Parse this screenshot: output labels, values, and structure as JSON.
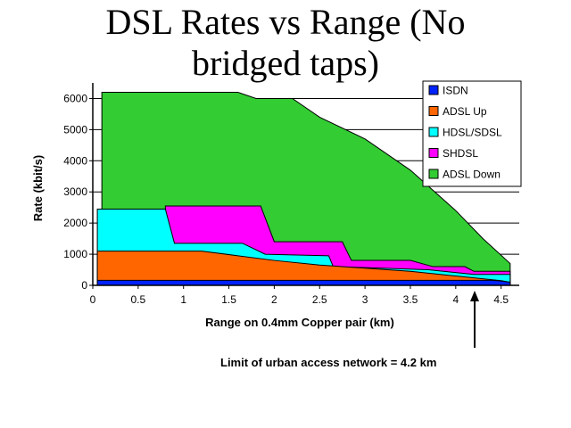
{
  "title_line1": "DSL Rates vs Range (No",
  "title_line2": "bridged taps)",
  "annotation": "Limit of urban access network = 4.2 km",
  "chart_data": {
    "type": "area",
    "xlabel": "Range on 0.4mm Copper pair (km)",
    "ylabel": "Rate (kbit/s)",
    "xlim": [
      0,
      4.7
    ],
    "ylim": [
      0,
      6500
    ],
    "x_ticks": [
      "0",
      "0.5",
      "1",
      "1.5",
      "2",
      "2.5",
      "3",
      "3.5",
      "4",
      "4.5"
    ],
    "y_ticks": [
      "0",
      "1000",
      "2000",
      "3000",
      "4000",
      "5000",
      "6000"
    ],
    "grid": "horizontal",
    "legend": "top-right",
    "series": [
      {
        "name": "ADSL Down",
        "color": "#33cc33",
        "points": [
          [
            0.1,
            6200
          ],
          [
            1.6,
            6200
          ],
          [
            1.8,
            6000
          ],
          [
            2.2,
            6000
          ],
          [
            2.5,
            5400
          ],
          [
            3.0,
            4700
          ],
          [
            3.5,
            3700
          ],
          [
            4.0,
            2400
          ],
          [
            4.3,
            1500
          ],
          [
            4.6,
            700
          ]
        ]
      },
      {
        "name": "SHDSL",
        "color": "#ff00ff",
        "points": [
          [
            0.8,
            2550
          ],
          [
            1.85,
            2550
          ],
          [
            2.0,
            1400
          ],
          [
            2.75,
            1400
          ],
          [
            2.85,
            800
          ],
          [
            3.5,
            800
          ],
          [
            3.75,
            600
          ],
          [
            4.1,
            600
          ],
          [
            4.2,
            450
          ],
          [
            4.6,
            450
          ]
        ]
      },
      {
        "name": "HDSL/SDSL",
        "color": "#00ffff",
        "points": [
          [
            0.05,
            2450
          ],
          [
            0.8,
            2450
          ],
          [
            0.9,
            1350
          ],
          [
            1.65,
            1350
          ],
          [
            1.9,
            1000
          ],
          [
            2.6,
            950
          ],
          [
            2.65,
            600
          ],
          [
            3.2,
            550
          ],
          [
            3.7,
            500
          ],
          [
            4.2,
            350
          ],
          [
            4.6,
            350
          ]
        ]
      },
      {
        "name": "ADSL Up",
        "color": "#ff6600",
        "points": [
          [
            0.05,
            1100
          ],
          [
            1.2,
            1100
          ],
          [
            1.6,
            950
          ],
          [
            2.0,
            800
          ],
          [
            2.5,
            650
          ],
          [
            3.0,
            550
          ],
          [
            3.5,
            450
          ],
          [
            4.0,
            300
          ],
          [
            4.5,
            150
          ],
          [
            4.6,
            100
          ]
        ]
      },
      {
        "name": "ISDN",
        "color": "#0022ff",
        "points": [
          [
            0.05,
            160
          ],
          [
            4.4,
            160
          ],
          [
            4.5,
            140
          ],
          [
            4.6,
            100
          ]
        ]
      }
    ],
    "legend_order": [
      "ISDN",
      "ADSL Up",
      "HDSL/SDSL",
      "SHDSL",
      "ADSL Down"
    ]
  }
}
